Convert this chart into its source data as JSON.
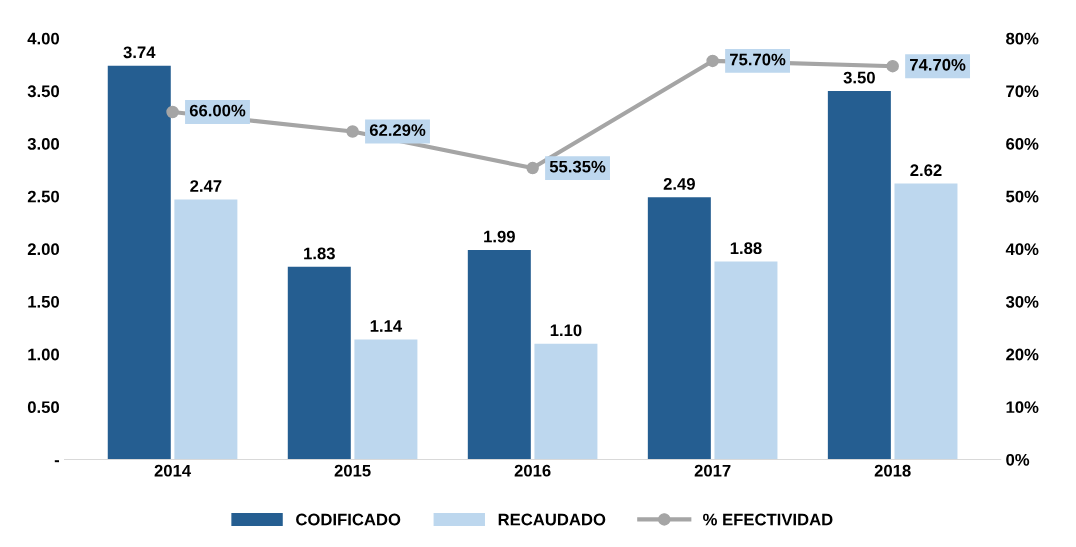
{
  "chart_data": {
    "type": "bar",
    "categories": [
      "2014",
      "2015",
      "2016",
      "2017",
      "2018"
    ],
    "series": [
      {
        "name": "CODIFICADO",
        "color": "#255e91",
        "values": [
          3.74,
          1.83,
          1.99,
          2.49,
          3.5
        ],
        "value_labels": [
          "3.74",
          "1.83",
          "1.99",
          "2.49",
          "3.50"
        ]
      },
      {
        "name": "RECAUDADO",
        "color": "#bdd7ee",
        "values": [
          2.47,
          1.14,
          1.1,
          1.88,
          2.62
        ],
        "value_labels": [
          "2.47",
          "1.14",
          "1.10",
          "1.88",
          "2.62"
        ]
      },
      {
        "name": "% EFECTIVIDAD",
        "type": "line",
        "axis": "y2",
        "color": "#a5a5a5",
        "marker": "circle",
        "values": [
          66.0,
          62.29,
          55.35,
          75.7,
          74.7
        ],
        "value_labels": [
          "66.00%",
          "62.29%",
          "55.35%",
          "75.70%",
          "74.70%"
        ]
      }
    ],
    "ylim": [
      0,
      4
    ],
    "yticks": [
      {
        "value": 0,
        "label": "-"
      },
      {
        "value": 0.5,
        "label": "0.50"
      },
      {
        "value": 1,
        "label": "1.00"
      },
      {
        "value": 1.5,
        "label": "1.50"
      },
      {
        "value": 2,
        "label": "2.00"
      },
      {
        "value": 2.5,
        "label": "2.50"
      },
      {
        "value": 3,
        "label": "3.00"
      },
      {
        "value": 3.5,
        "label": "3.50"
      },
      {
        "value": 4,
        "label": "4.00"
      }
    ],
    "y2lim": [
      0,
      80
    ],
    "y2ticks": [
      {
        "value": 0,
        "label": "0%"
      },
      {
        "value": 10,
        "label": "10%"
      },
      {
        "value": 20,
        "label": "20%"
      },
      {
        "value": 30,
        "label": "30%"
      },
      {
        "value": 40,
        "label": "40%"
      },
      {
        "value": 50,
        "label": "50%"
      },
      {
        "value": 60,
        "label": "60%"
      },
      {
        "value": 70,
        "label": "70%"
      },
      {
        "value": 80,
        "label": "80%"
      }
    ],
    "grid": false,
    "legend": "bottom"
  }
}
